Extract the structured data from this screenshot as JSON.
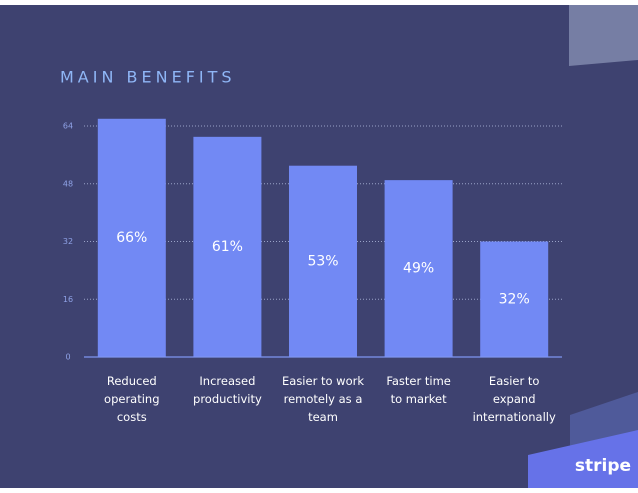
{
  "chart_data": {
    "type": "bar",
    "title": "MAIN BENEFITS",
    "categories": [
      "Reduced\noperating\ncosts",
      "Increased\nproductivity",
      "Easier to work\nremotely as a\nteam",
      "Faster time\nto market",
      "Easier to\nexpand\ninternationally"
    ],
    "values": [
      66,
      61,
      53,
      49,
      32
    ],
    "value_labels": [
      "66%",
      "61%",
      "53%",
      "49%",
      "32%"
    ],
    "color": "#7289f4",
    "ylim": [
      0,
      64
    ],
    "yticks": [
      0,
      16,
      32,
      48,
      64
    ],
    "grid": true
  },
  "logo": "stripe"
}
